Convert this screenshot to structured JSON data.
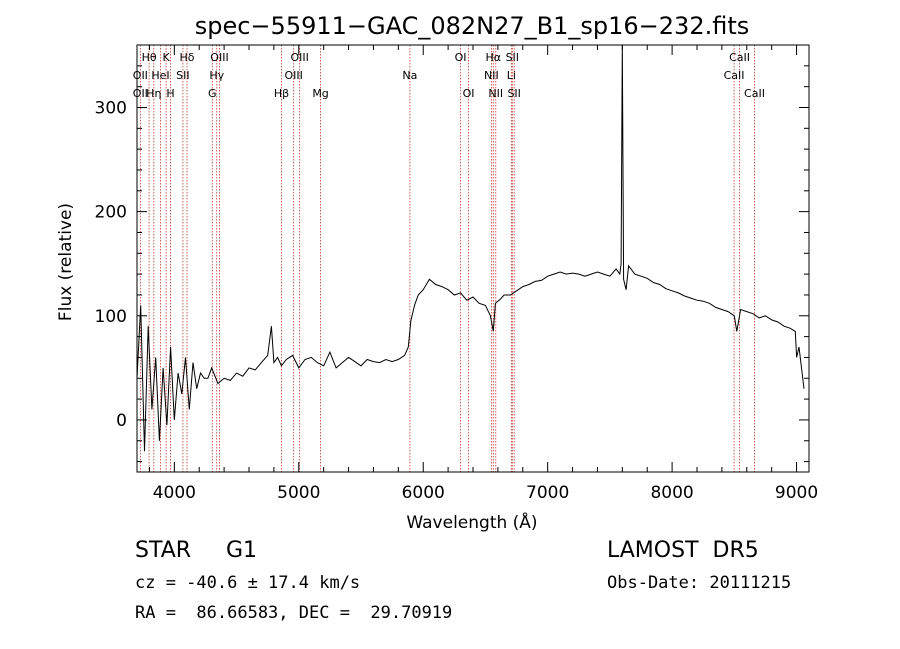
{
  "chart_data": {
    "type": "line",
    "title": "spec−55911−GAC_082N27_B1_sp16−232.fits",
    "xlabel": "Wavelength (Å)",
    "ylabel": "Flux (relative)",
    "xlim": [
      3700,
      9100
    ],
    "ylim": [
      -50,
      360
    ],
    "xticks": [
      4000,
      5000,
      6000,
      7000,
      8000,
      9000
    ],
    "yticks": [
      0,
      100,
      200,
      300
    ],
    "grid": false,
    "series": [
      {
        "x": [
          3700,
          3730,
          3760,
          3790,
          3820,
          3850,
          3880,
          3910,
          3940,
          3970,
          4000,
          4030,
          4060,
          4090,
          4120,
          4150,
          4180,
          4210,
          4240,
          4270,
          4300,
          4350,
          4400,
          4450,
          4500,
          4550,
          4600,
          4650,
          4700,
          4750,
          4780,
          4800,
          4830,
          4860,
          4900,
          4950,
          5000,
          5050,
          5100,
          5150,
          5200,
          5250,
          5300,
          5350,
          5400,
          5450,
          5500,
          5550,
          5600,
          5650,
          5700,
          5750,
          5800,
          5850,
          5880,
          5900,
          5930,
          5960,
          6000,
          6050,
          6100,
          6150,
          6200,
          6250,
          6300,
          6350,
          6400,
          6450,
          6500,
          6540,
          6563,
          6580,
          6620,
          6650,
          6700,
          6750,
          6800,
          6850,
          6900,
          6950,
          7000,
          7050,
          7100,
          7150,
          7200,
          7250,
          7300,
          7350,
          7400,
          7450,
          7500,
          7550,
          7580,
          7590,
          7600,
          7610,
          7630,
          7650,
          7700,
          7750,
          7800,
          7850,
          7900,
          7950,
          8000,
          8050,
          8100,
          8150,
          8200,
          8250,
          8300,
          8350,
          8400,
          8450,
          8500,
          8520,
          8550,
          8600,
          8650,
          8700,
          8750,
          8800,
          8850,
          8900,
          8950,
          8990,
          9000,
          9020,
          9040,
          9060
        ],
        "y": [
          40,
          110,
          -30,
          90,
          10,
          60,
          -20,
          50,
          -5,
          70,
          0,
          45,
          25,
          60,
          10,
          55,
          30,
          45,
          40,
          40,
          50,
          35,
          40,
          38,
          45,
          42,
          50,
          48,
          55,
          62,
          90,
          55,
          60,
          52,
          58,
          62,
          50,
          58,
          60,
          55,
          52,
          65,
          50,
          55,
          60,
          56,
          52,
          58,
          56,
          55,
          58,
          56,
          58,
          62,
          70,
          95,
          110,
          120,
          125,
          135,
          130,
          128,
          125,
          120,
          122,
          115,
          118,
          112,
          110,
          100,
          85,
          112,
          116,
          120,
          120,
          124,
          128,
          130,
          133,
          134,
          138,
          140,
          142,
          140,
          141,
          140,
          138,
          140,
          142,
          140,
          138,
          145,
          140,
          150,
          360,
          135,
          125,
          148,
          140,
          138,
          136,
          132,
          130,
          126,
          124,
          122,
          119,
          117,
          115,
          114,
          112,
          108,
          106,
          104,
          100,
          85,
          106,
          104,
          102,
          98,
          100,
          96,
          94,
          90,
          88,
          85,
          60,
          70,
          50,
          30
        ]
      }
    ],
    "line_labels": [
      {
        "label": "Hθ",
        "x": 3797,
        "row": 0
      },
      {
        "label": "OII",
        "x": 3727,
        "row": 1
      },
      {
        "label": "OII",
        "x": 3727,
        "row": 2
      },
      {
        "label": "Hη",
        "x": 3835,
        "row": 2
      },
      {
        "label": "K",
        "x": 3934,
        "row": 0
      },
      {
        "label": "HeI",
        "x": 3889,
        "row": 1
      },
      {
        "label": "H",
        "x": 3969,
        "row": 2
      },
      {
        "label": "Hδ",
        "x": 4102,
        "row": 0
      },
      {
        "label": "SII",
        "x": 4069,
        "row": 1
      },
      {
        "label": "OIII",
        "x": 4363,
        "row": 0
      },
      {
        "label": "Hγ",
        "x": 4341,
        "row": 1
      },
      {
        "label": "G",
        "x": 4305,
        "row": 2
      },
      {
        "label": "OIII",
        "x": 5007,
        "row": 0
      },
      {
        "label": "OIII",
        "x": 4959,
        "row": 1
      },
      {
        "label": "Hβ",
        "x": 4861,
        "row": 2
      },
      {
        "label": "Mg",
        "x": 5175,
        "row": 2
      },
      {
        "label": "Na",
        "x": 5893,
        "row": 1
      },
      {
        "label": "OI",
        "x": 6300,
        "row": 0
      },
      {
        "label": "OI",
        "x": 6364,
        "row": 2
      },
      {
        "label": "Hα",
        "x": 6563,
        "row": 0
      },
      {
        "label": "SII",
        "x": 6716,
        "row": 0
      },
      {
        "label": "NII",
        "x": 6548,
        "row": 1
      },
      {
        "label": "Li",
        "x": 6708,
        "row": 1
      },
      {
        "label": "NII",
        "x": 6583,
        "row": 2
      },
      {
        "label": "SII",
        "x": 6731,
        "row": 2
      },
      {
        "label": "CaII",
        "x": 8542,
        "row": 0
      },
      {
        "label": "CaII",
        "x": 8498,
        "row": 1
      },
      {
        "label": "CaII",
        "x": 8662,
        "row": 2
      }
    ],
    "line_marker_color": "#c0392b"
  },
  "info": {
    "object_class": "STAR     G1",
    "survey": "LAMOST  DR5",
    "cz": "cz = -40.6 ± 17.4 km/s",
    "obs_date": "Obs-Date: 20111215",
    "coords": "RA =  86.66583, DEC =  29.70919"
  }
}
